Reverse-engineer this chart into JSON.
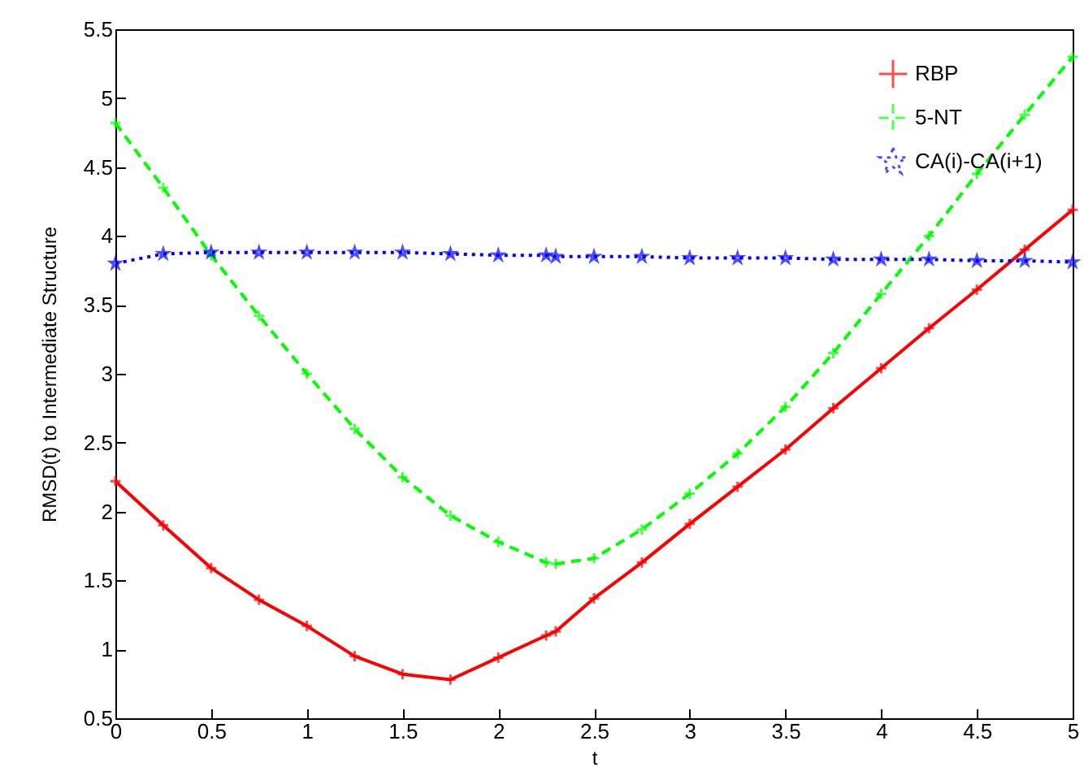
{
  "chart_data": {
    "type": "line",
    "xlabel": "t",
    "ylabel": "RMSD(t) to Intermediate Structure",
    "xlim": [
      0,
      5
    ],
    "ylim": [
      0.5,
      5.5
    ],
    "xticks": [
      0,
      0.5,
      1,
      1.5,
      2,
      2.5,
      3,
      3.5,
      4,
      4.5,
      5
    ],
    "yticks": [
      0.5,
      1,
      1.5,
      2,
      2.5,
      3,
      3.5,
      4,
      4.5,
      5,
      5.5
    ],
    "x": [
      0,
      0.25,
      0.5,
      0.75,
      1,
      1.25,
      1.5,
      1.75,
      2,
      2.25,
      2.3,
      2.5,
      2.75,
      3,
      3.25,
      3.5,
      3.75,
      4,
      4.25,
      4.5,
      4.75,
      5
    ],
    "series": [
      {
        "name": "RBP",
        "color": "#ff0000",
        "marker": "cross",
        "line_style": "solid",
        "values": [
          2.22,
          1.9,
          1.59,
          1.36,
          1.17,
          0.95,
          0.82,
          0.78,
          0.94,
          1.1,
          1.13,
          1.37,
          1.63,
          1.91,
          2.18,
          2.45,
          2.75,
          3.04,
          3.33,
          3.61,
          3.9,
          4.19
        ]
      },
      {
        "name": "5-NT",
        "color": "#00ff00",
        "marker": "cross",
        "line_style": "dashed",
        "values": [
          4.82,
          4.35,
          3.86,
          3.42,
          3.0,
          2.6,
          2.25,
          1.97,
          1.78,
          1.63,
          1.62,
          1.66,
          1.87,
          2.13,
          2.42,
          2.76,
          3.15,
          3.58,
          4.0,
          4.45,
          4.88,
          5.3
        ]
      },
      {
        "name": "CA(i)-CA(i+1)",
        "color": "#0000ff",
        "marker": "star",
        "line_style": "dotted",
        "values": [
          3.8,
          3.87,
          3.88,
          3.88,
          3.88,
          3.88,
          3.88,
          3.87,
          3.86,
          3.86,
          3.85,
          3.85,
          3.85,
          3.84,
          3.84,
          3.84,
          3.83,
          3.83,
          3.83,
          3.82,
          3.82,
          3.81
        ]
      }
    ],
    "grid": false,
    "legend": "top right"
  }
}
